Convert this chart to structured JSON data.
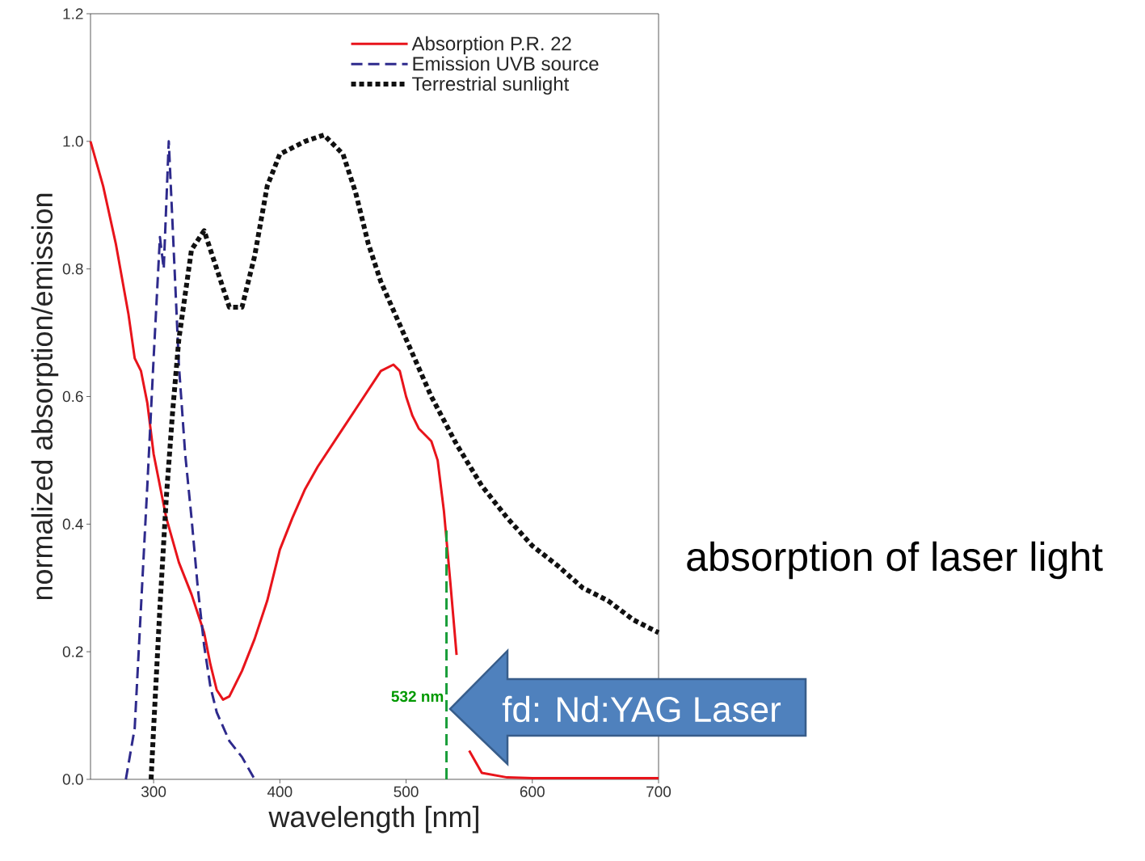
{
  "chart_data": {
    "type": "line",
    "xlabel": "wavelength [nm]",
    "ylabel": "normalized absorption/emission",
    "xlim": [
      250,
      700
    ],
    "xticks": [
      300,
      400,
      500,
      600,
      700
    ],
    "ylim": [
      0,
      1.2
    ],
    "yticks": [
      {
        "value": 0,
        "label": "0.0"
      },
      {
        "value": 0.2,
        "label": "0.2"
      },
      {
        "value": 0.4,
        "label": "0.4"
      },
      {
        "value": 0.6,
        "label": "0.6"
      },
      {
        "value": 0.8,
        "label": "0.8"
      },
      {
        "value": 1.0,
        "label": "1.0"
      },
      {
        "value": 1.2,
        "label": "1.2"
      }
    ],
    "legend": "top right",
    "series": [
      {
        "name": "Absorption P.R. 22",
        "color": "#e8141b",
        "line_style": "solid",
        "x": [
          250,
          260,
          270,
          280,
          285,
          290,
          295,
          300,
          310,
          320,
          330,
          340,
          345,
          350,
          355,
          360,
          370,
          380,
          390,
          400,
          410,
          420,
          430,
          440,
          450,
          460,
          470,
          480,
          490,
          495,
          500,
          505,
          510,
          520,
          525,
          530,
          535,
          540,
          545,
          550,
          560,
          580,
          600,
          700
        ],
        "values": [
          1.0,
          0.93,
          0.84,
          0.73,
          0.66,
          0.64,
          0.59,
          0.51,
          0.41,
          0.34,
          0.29,
          0.23,
          0.18,
          0.14,
          0.125,
          0.13,
          0.17,
          0.22,
          0.28,
          0.36,
          0.41,
          0.455,
          0.49,
          0.52,
          0.55,
          0.58,
          0.61,
          0.64,
          0.65,
          0.64,
          0.6,
          0.57,
          0.55,
          0.53,
          0.5,
          0.42,
          0.31,
          0.195,
          null,
          0.045,
          0.01,
          0.003,
          0.002,
          0.002
        ]
      },
      {
        "name": "Emission UVB source",
        "color": "#2e2a8c",
        "line_style": "dashed",
        "x": [
          278,
          285,
          290,
          295,
          300,
          305,
          308,
          312,
          315,
          320,
          325,
          330,
          335,
          340,
          345,
          350,
          360,
          370,
          380
        ],
        "values": [
          0,
          0.08,
          0.27,
          0.46,
          0.66,
          0.85,
          0.8,
          1.0,
          0.87,
          0.65,
          0.51,
          0.41,
          0.3,
          0.21,
          0.145,
          0.105,
          0.06,
          0.035,
          0.0
        ]
      },
      {
        "name": "Terrestrial sunlight",
        "color": "#111111",
        "line_style": "dotted",
        "x": [
          298,
          300,
          305,
          310,
          315,
          320,
          330,
          340,
          350,
          360,
          370,
          380,
          390,
          400,
          420,
          435,
          450,
          460,
          470,
          480,
          500,
          520,
          540,
          560,
          580,
          600,
          620,
          640,
          660,
          680,
          700
        ],
        "values": [
          0,
          0.08,
          0.27,
          0.44,
          0.575,
          0.69,
          0.83,
          0.86,
          0.8,
          0.74,
          0.74,
          0.82,
          0.93,
          0.98,
          1.0,
          1.01,
          0.98,
          0.92,
          0.84,
          0.78,
          0.69,
          0.6,
          0.525,
          0.46,
          0.41,
          0.366,
          0.335,
          0.3,
          0.28,
          0.25,
          0.23
        ]
      },
      {
        "color": "#1a9e3a",
        "line_style": "dashed",
        "x": [
          532,
          532
        ],
        "values": [
          0,
          0.39
        ]
      }
    ],
    "annotations": [
      {
        "text": "532 nm",
        "x": 532,
        "y": 0.13
      },
      "fd: Nd:YAG Laser",
      "absorption of laser light"
    ]
  }
}
